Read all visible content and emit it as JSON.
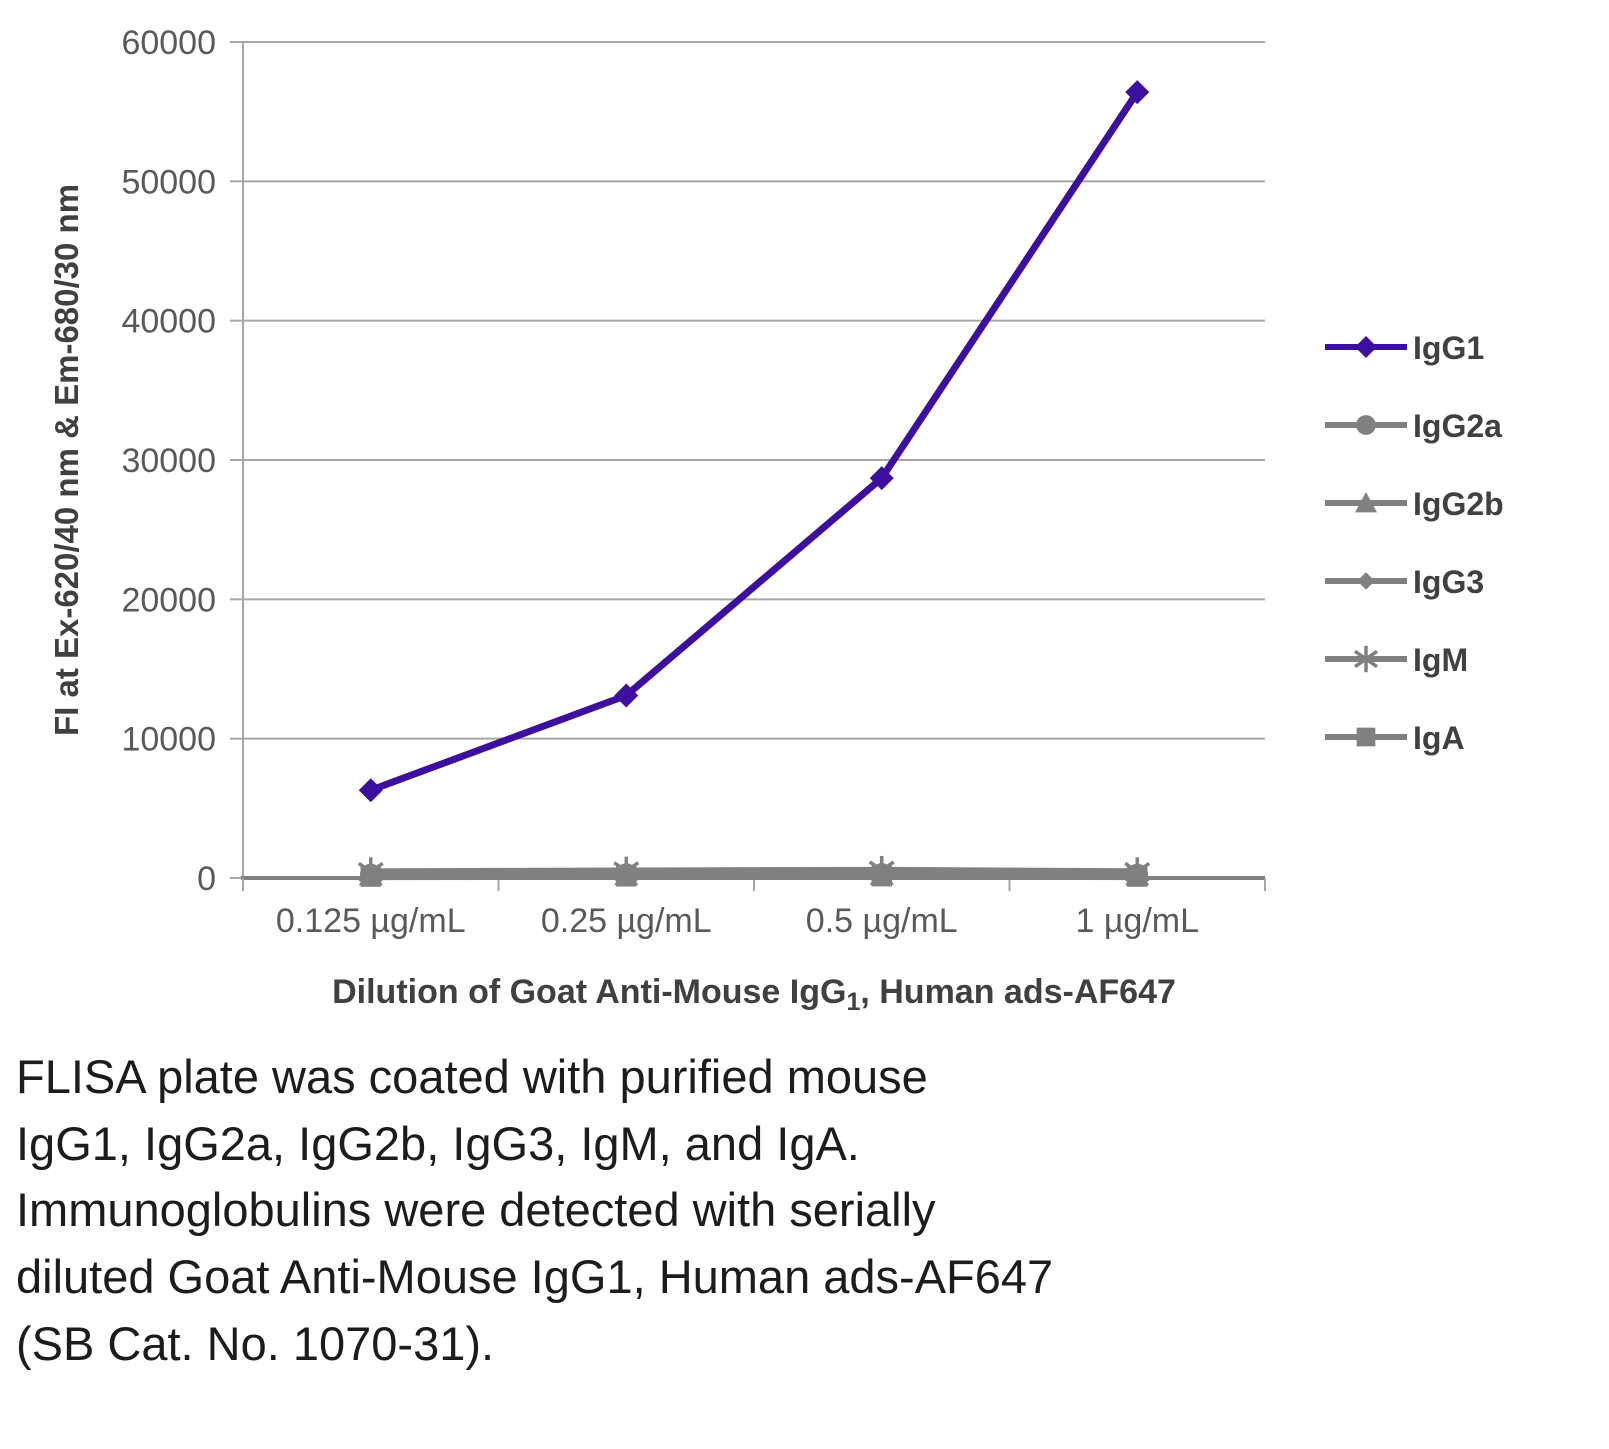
{
  "chart_data": {
    "type": "line",
    "categories": [
      "0.125 µg/mL",
      "0.25 µg/mL",
      "0.5 µg/mL",
      "1 µg/mL"
    ],
    "series": [
      {
        "name": "IgG1",
        "values": [
          6300,
          13100,
          28700,
          56400
        ],
        "color": "#3D0F9E",
        "marker": "diamond"
      },
      {
        "name": "IgG2a",
        "values": [
          250,
          280,
          300,
          250
        ],
        "color": "#808080",
        "marker": "circle"
      },
      {
        "name": "IgG2b",
        "values": [
          200,
          220,
          240,
          200
        ],
        "color": "#808080",
        "marker": "triangle"
      },
      {
        "name": "IgG3",
        "values": [
          150,
          170,
          180,
          150
        ],
        "color": "#808080",
        "marker": "diamond-small"
      },
      {
        "name": "IgM",
        "values": [
          450,
          500,
          550,
          450
        ],
        "color": "#808080",
        "marker": "asterisk"
      },
      {
        "name": "IgA",
        "values": [
          100,
          120,
          130,
          100
        ],
        "color": "#808080",
        "marker": "square"
      }
    ],
    "title": "",
    "ylabel": "FI at Ex-620/40 nm & Em-680/30 nm",
    "xlabel_pre": "Dilution of Goat Anti-Mouse IgG",
    "xlabel_sub": "1",
    "xlabel_post": ", Human ads-AF647",
    "ylim": [
      0,
      60000
    ],
    "ytick_step": 10000,
    "grid": true,
    "legend_position": "right"
  },
  "caption": "FLISA plate was coated with purified mouse\nIgG1, IgG2a, IgG2b, IgG3, IgM, and IgA.\nImmunoglobulins were detected with serially\ndiluted Goat Anti-Mouse IgG1, Human ads-AF647\n(SB Cat. No. 1070-31).",
  "colors": {
    "accent": "#3D0F9E",
    "gray_series": "#808080",
    "gridline": "#A6A6A6",
    "axis_line": "#808080",
    "axis_text": "#595959",
    "axis_title_text": "#404040",
    "caption_text": "#1C1C1C"
  }
}
